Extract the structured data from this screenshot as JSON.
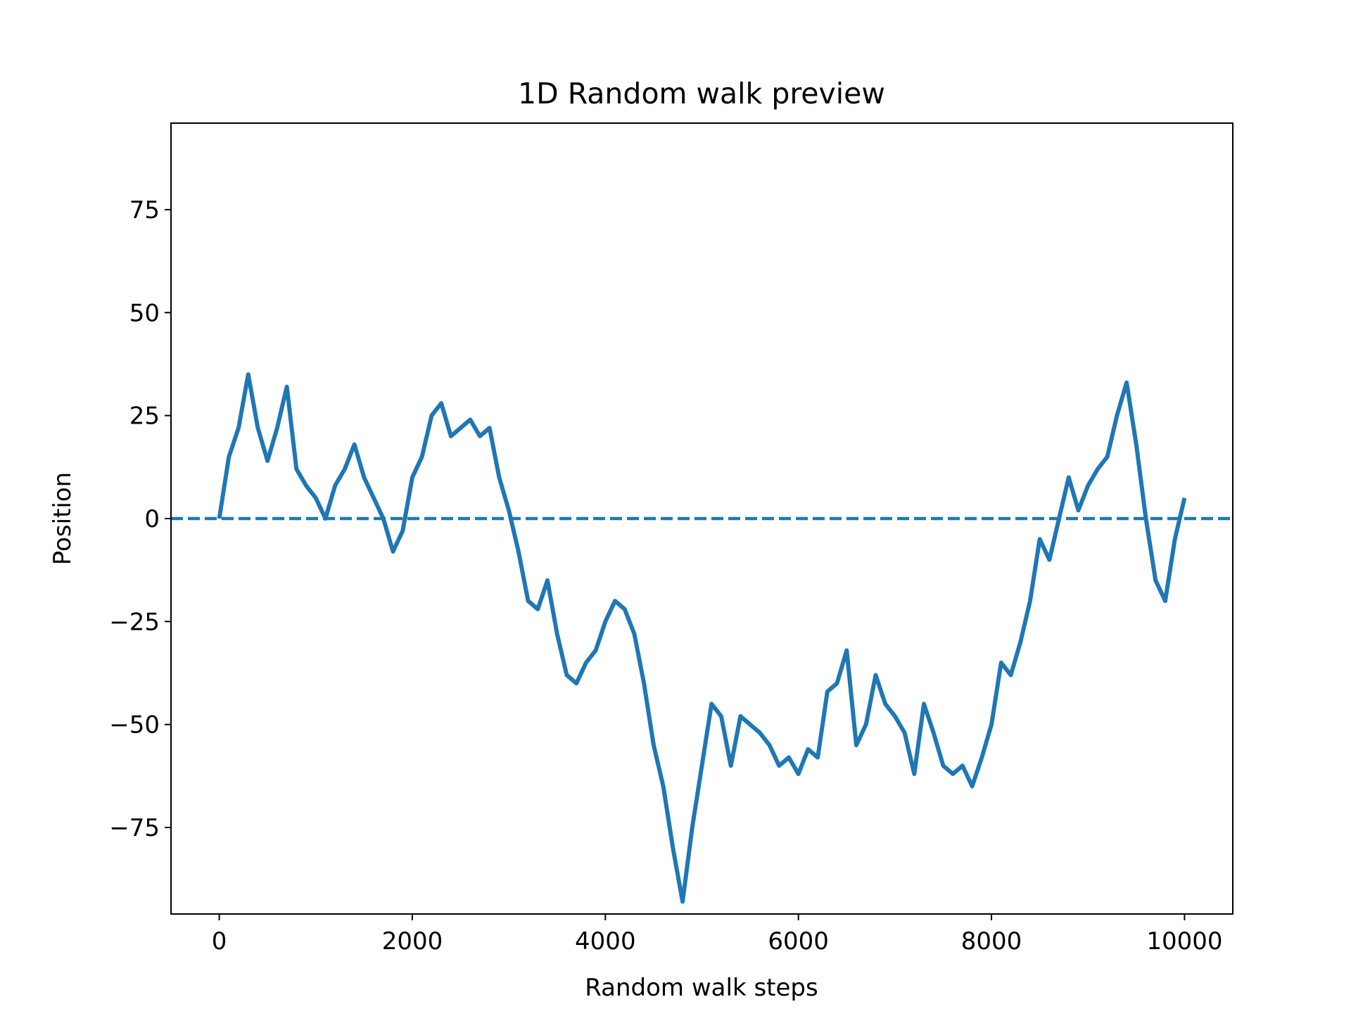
{
  "chart_data": {
    "type": "line",
    "title": "1D Random walk preview",
    "x_label": "Random walk steps",
    "y_label": "Position",
    "x": [
      0,
      100,
      200,
      300,
      400,
      500,
      600,
      700,
      800,
      900,
      1000,
      1100,
      1200,
      1300,
      1400,
      1500,
      1600,
      1700,
      1800,
      1900,
      2000,
      2100,
      2200,
      2300,
      2400,
      2500,
      2600,
      2700,
      2800,
      2900,
      3000,
      3100,
      3200,
      3300,
      3400,
      3500,
      3600,
      3700,
      3800,
      3900,
      4000,
      4100,
      4200,
      4300,
      4400,
      4500,
      4600,
      4700,
      4800,
      4900,
      5000,
      5100,
      5200,
      5300,
      5400,
      5500,
      5600,
      5700,
      5800,
      5900,
      6000,
      6100,
      6200,
      6300,
      6400,
      6500,
      6600,
      6700,
      6800,
      6900,
      7000,
      7100,
      7200,
      7300,
      7400,
      7500,
      7600,
      7700,
      7800,
      7900,
      8000,
      8100,
      8200,
      8300,
      8400,
      8500,
      8600,
      8700,
      8800,
      8900,
      9000,
      9100,
      9200,
      9300,
      9400,
      9500,
      9600,
      9700,
      9800,
      9900,
      10000
    ],
    "series": [
      {
        "name": "Position",
        "color": "#1f77b4",
        "values": [
          0,
          15,
          22,
          35,
          22,
          14,
          22,
          32,
          12,
          8,
          5,
          0,
          8,
          12,
          18,
          10,
          5,
          0,
          -8,
          -3,
          10,
          15,
          25,
          28,
          20,
          22,
          24,
          20,
          22,
          10,
          2,
          -8,
          -20,
          -22,
          -15,
          -28,
          -38,
          -40,
          -35,
          -32,
          -25,
          -20,
          -22,
          -28,
          -40,
          -55,
          -65,
          -80,
          -93,
          -75,
          -60,
          -45,
          -48,
          -60,
          -48,
          -50,
          -52,
          -55,
          -60,
          -58,
          -62,
          -56,
          -58,
          -42,
          -40,
          -32,
          -55,
          -50,
          -38,
          -45,
          -48,
          -52,
          -62,
          -45,
          -52,
          -60,
          -62,
          -60,
          -65,
          -58,
          -50,
          -35,
          -38,
          -30,
          -20,
          -5,
          -10,
          0,
          10,
          2,
          8,
          12,
          15,
          25,
          33,
          18,
          0,
          -15,
          -20,
          -5,
          5
        ]
      }
    ],
    "reference_line": {
      "y": 0,
      "color": "#1f77b4",
      "dashed": true
    },
    "xlim": [
      -500,
      10500
    ],
    "xticks": [
      0,
      2000,
      4000,
      6000,
      8000,
      10000
    ],
    "ylim": [
      -96,
      96
    ],
    "yticks": [
      {
        "value": -75,
        "label": "−75"
      },
      {
        "value": -50,
        "label": "−50"
      },
      {
        "value": -25,
        "label": "−25"
      },
      0,
      25,
      50,
      75
    ],
    "grid": false
  }
}
